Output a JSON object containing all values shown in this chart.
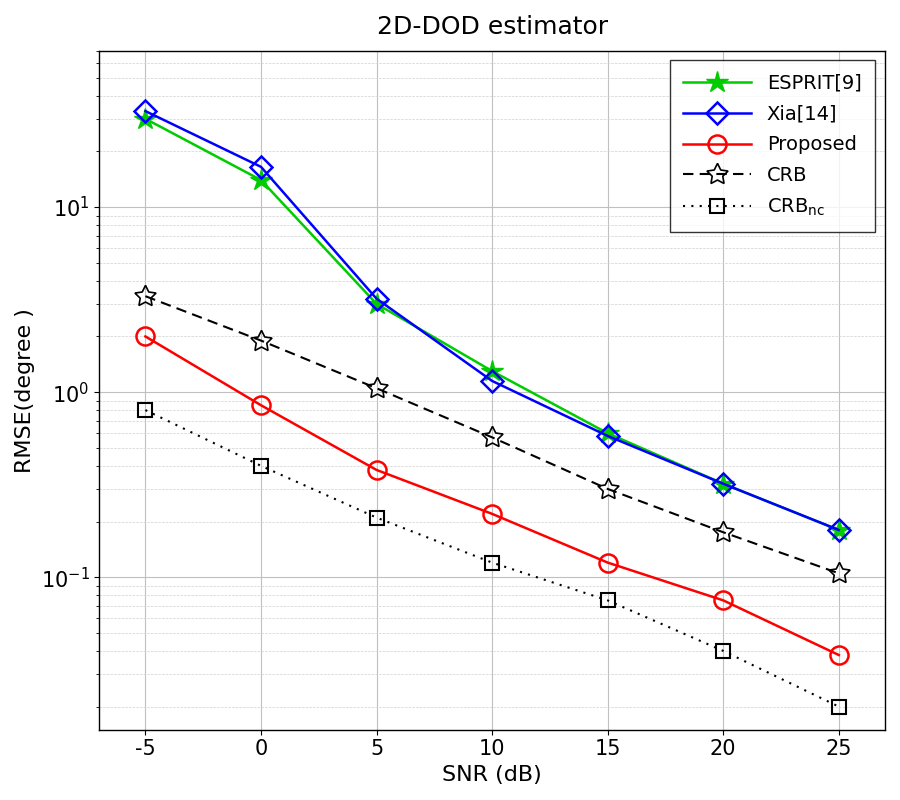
{
  "title": "2D-DOD estimator",
  "xlabel": "SNR (dB)",
  "ylabel": "RMSE(degree )",
  "snr": [
    -5,
    0,
    5,
    10,
    15,
    20,
    25
  ],
  "esprit": [
    30.0,
    14.0,
    3.0,
    1.3,
    0.6,
    0.32,
    0.18
  ],
  "xia14": [
    33.0,
    16.5,
    3.2,
    1.15,
    0.58,
    0.32,
    0.18
  ],
  "proposed": [
    2.0,
    0.85,
    0.38,
    0.22,
    0.12,
    0.075,
    0.038
  ],
  "crb": [
    3.3,
    1.9,
    1.05,
    0.57,
    0.3,
    0.175,
    0.105
  ],
  "crb_nc": [
    0.8,
    0.4,
    0.21,
    0.12,
    0.075,
    0.04,
    0.02
  ],
  "esprit_color": "#00cc00",
  "xia14_color": "#0000ff",
  "proposed_color": "#ff0000",
  "crb_color": "#000000",
  "crb_nc_color": "#000000",
  "grid_color": "#c0c0c0",
  "minor_grid_color": "#d0d0d0",
  "ylim_bottom": 0.015,
  "ylim_top": 70.0,
  "xlim_left": -7,
  "xlim_right": 27,
  "title_fontsize": 18,
  "label_fontsize": 16,
  "tick_fontsize": 15,
  "legend_fontsize": 14
}
